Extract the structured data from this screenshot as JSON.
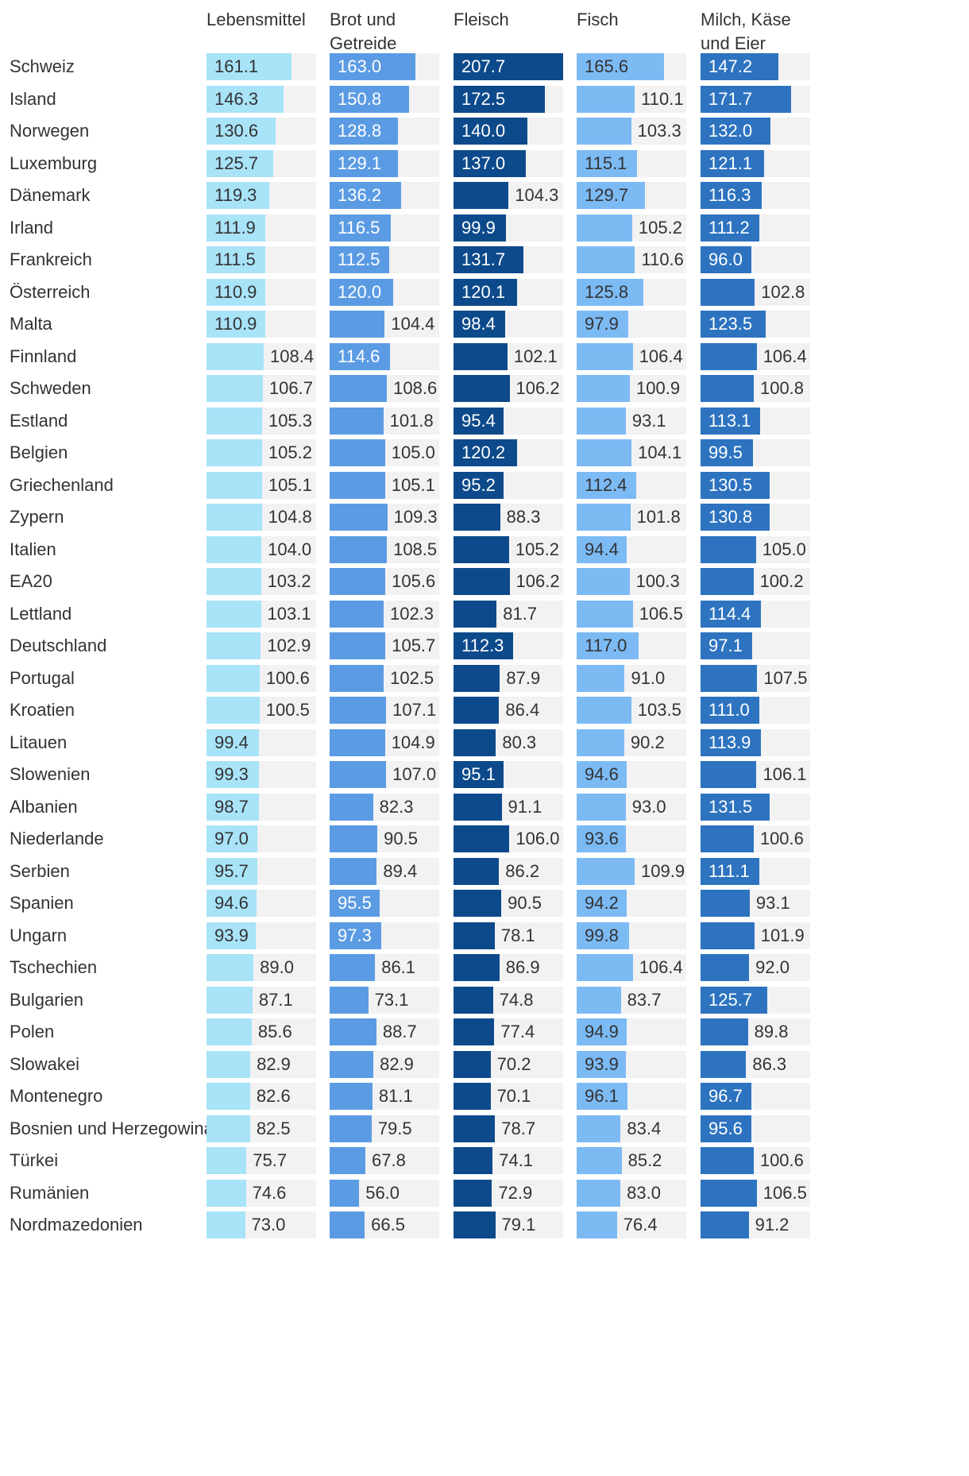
{
  "chart_data": {
    "type": "bar",
    "layout": "small-multiples-horizontal-bars",
    "x_range": [
      0,
      207.7
    ],
    "columns": [
      {
        "key": "lebensmittel",
        "label": "Lebensmittel",
        "color": "#a8e3f8",
        "text_color": "#333333"
      },
      {
        "key": "brot",
        "label": "Brot und\nGetreide",
        "color": "#5b9be3",
        "text_color": "#ffffff"
      },
      {
        "key": "fleisch",
        "label": "Fleisch",
        "color": "#0d4a8b",
        "text_color": "#ffffff"
      },
      {
        "key": "fisch",
        "label": "Fisch",
        "color": "#7cbaf4",
        "text_color": "#333333"
      },
      {
        "key": "milch",
        "label": "Milch, Käse\nund Eier",
        "color": "#2d73c0",
        "text_color": "#ffffff"
      }
    ],
    "categories": [
      "Schweiz",
      "Island",
      "Norwegen",
      "Luxemburg",
      "Dänemark",
      "Irland",
      "Frankreich",
      "Österreich",
      "Malta",
      "Finnland",
      "Schweden",
      "Estland",
      "Belgien",
      "Griechenland",
      "Zypern",
      "Italien",
      "EA20",
      "Lettland",
      "Deutschland",
      "Portugal",
      "Kroatien",
      "Litauen",
      "Slowenien",
      "Albanien",
      "Niederlande",
      "Serbien",
      "Spanien",
      "Ungarn",
      "Tschechien",
      "Bulgarien",
      "Polen",
      "Slowakei",
      "Montenegro",
      "Bosnien und Herzegowina",
      "Türkei",
      "Rumänien",
      "Nordmazedonien"
    ],
    "series": [
      {
        "name": "Lebensmittel",
        "values": [
          "161.1",
          "146.3",
          "130.6",
          "125.7",
          "119.3",
          "111.9",
          "111.5",
          "110.9",
          "110.9",
          "108.4",
          "106.7",
          "105.3",
          "105.2",
          "105.1",
          "104.8",
          "104.0",
          "103.2",
          "103.1",
          "102.9",
          "100.6",
          "100.5",
          "99.4",
          "99.3",
          "98.7",
          "97.0",
          "95.7",
          "94.6",
          "93.9",
          "89.0",
          "87.1",
          "85.6",
          "82.9",
          "82.6",
          "82.5",
          "75.7",
          "74.6",
          "73.0"
        ]
      },
      {
        "name": "Brot und Getreide",
        "values": [
          "163.0",
          "150.8",
          "128.8",
          "129.1",
          "136.2",
          "116.5",
          "112.5",
          "120.0",
          "104.4",
          "114.6",
          "108.6",
          "101.8",
          "105.0",
          "105.1",
          "109.3",
          "108.5",
          "105.6",
          "102.3",
          "105.7",
          "102.5",
          "107.1",
          "104.9",
          "107.0",
          "82.3",
          "90.5",
          "89.4",
          "95.5",
          "97.3",
          "86.1",
          "73.1",
          "88.7",
          "82.9",
          "81.1",
          "79.5",
          "67.8",
          "56.0",
          "66.5"
        ]
      },
      {
        "name": "Fleisch",
        "values": [
          "207.7",
          "172.5",
          "140.0",
          "137.0",
          "104.3",
          "99.9",
          "131.7",
          "120.1",
          "98.4",
          "102.1",
          "106.2",
          "95.4",
          "120.2",
          "95.2",
          "88.3",
          "105.2",
          "106.2",
          "81.7",
          "112.3",
          "87.9",
          "86.4",
          "80.3",
          "95.1",
          "91.1",
          "106.0",
          "86.2",
          "90.5",
          "78.1",
          "86.9",
          "74.8",
          "77.4",
          "70.2",
          "70.1",
          "78.7",
          "74.1",
          "72.9",
          "79.1"
        ]
      },
      {
        "name": "Fisch",
        "values": [
          "165.6",
          "110.1",
          "103.3",
          "115.1",
          "129.7",
          "105.2",
          "110.6",
          "125.8",
          "97.9",
          "106.4",
          "100.9",
          "93.1",
          "104.1",
          "112.4",
          "101.8",
          "94.4",
          "100.3",
          "106.5",
          "117.0",
          "91.0",
          "103.5",
          "90.2",
          "94.6",
          "93.0",
          "93.6",
          "109.9",
          "94.2",
          "99.8",
          "106.4",
          "83.7",
          "94.9",
          "93.9",
          "96.1",
          "83.4",
          "85.2",
          "83.0",
          "76.4"
        ]
      },
      {
        "name": "Milch, Käse und Eier",
        "values": [
          "147.2",
          "171.7",
          "132.0",
          "121.1",
          "116.3",
          "111.2",
          "96.0",
          "102.8",
          "123.5",
          "106.4",
          "100.8",
          "113.1",
          "99.5",
          "130.5",
          "130.8",
          "105.0",
          "100.2",
          "114.4",
          "97.1",
          "107.5",
          "111.0",
          "113.9",
          "106.1",
          "131.5",
          "100.6",
          "111.1",
          "93.1",
          "101.9",
          "92.0",
          "125.7",
          "89.8",
          "86.3",
          "96.7",
          "95.6",
          "100.6",
          "106.5",
          "91.2"
        ]
      }
    ]
  }
}
